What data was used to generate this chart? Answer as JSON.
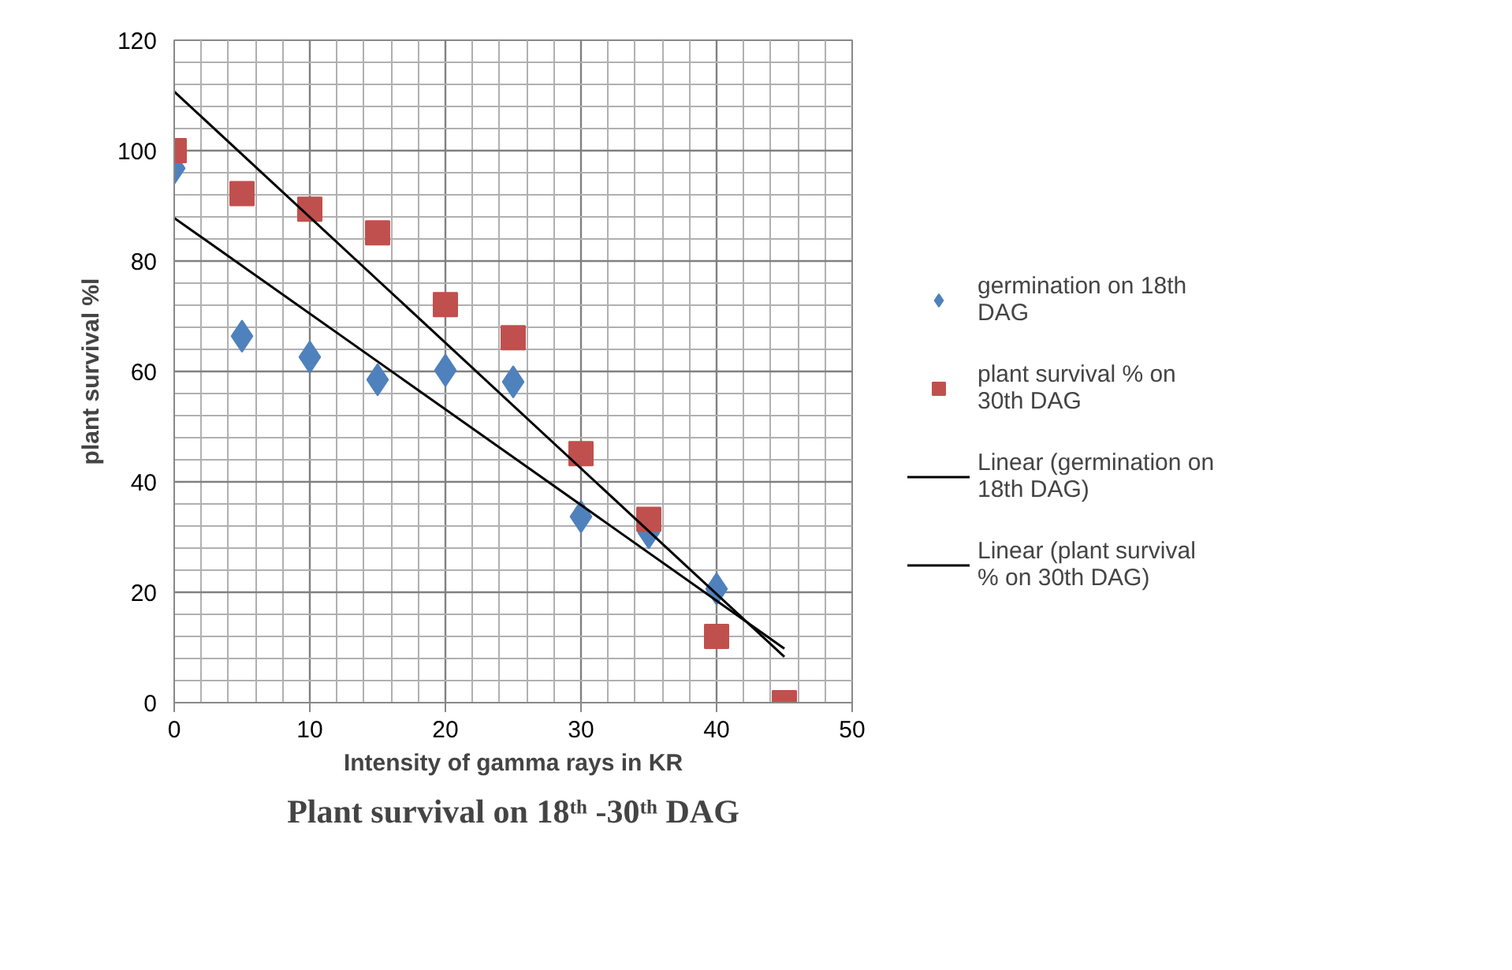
{
  "chart_data": {
    "type": "scatter",
    "title": "Plant survival on 18ᵗʰ -30ᵗʰ DAG",
    "xlabel": "Intensity of gamma rays in KR",
    "ylabel": "plant survival %l",
    "x": [
      0,
      5,
      10,
      15,
      20,
      25,
      30,
      35,
      40,
      45
    ],
    "series": [
      {
        "name": "germination on 18th DAG",
        "color": "#4f81bd",
        "marker": "diamond",
        "x": [
          0,
          5,
          10,
          15,
          20,
          25,
          30,
          35,
          40
        ],
        "values": [
          96.8,
          66.4,
          62.6,
          58.5,
          60.2,
          58.1,
          33.7,
          30.8,
          20.6
        ]
      },
      {
        "name": "plant survival % on 30th DAG",
        "color": "#c0504d",
        "marker": "square",
        "values": [
          100,
          92.2,
          89.4,
          85.1,
          72.1,
          66.1,
          45.1,
          33.2,
          12,
          0
        ]
      },
      {
        "name": "Linear (germination on 18th DAG)",
        "type": "line",
        "color": "#000000",
        "line_style": "solid",
        "x": [
          0,
          45
        ],
        "values": [
          87.8,
          9.8
        ]
      },
      {
        "name": "Linear (plant survival % on 30th DAG)",
        "type": "line",
        "color": "#000000",
        "line_style": "solid",
        "x": [
          0,
          45
        ],
        "values": [
          110.7,
          8.3
        ]
      }
    ],
    "xlim": [
      0,
      50
    ],
    "ylim": [
      0,
      120
    ],
    "xticks": [
      0,
      10,
      20,
      30,
      40,
      50
    ],
    "yticks": [
      0,
      20,
      40,
      60,
      80,
      100,
      120
    ],
    "grid": true,
    "legend": "right"
  }
}
